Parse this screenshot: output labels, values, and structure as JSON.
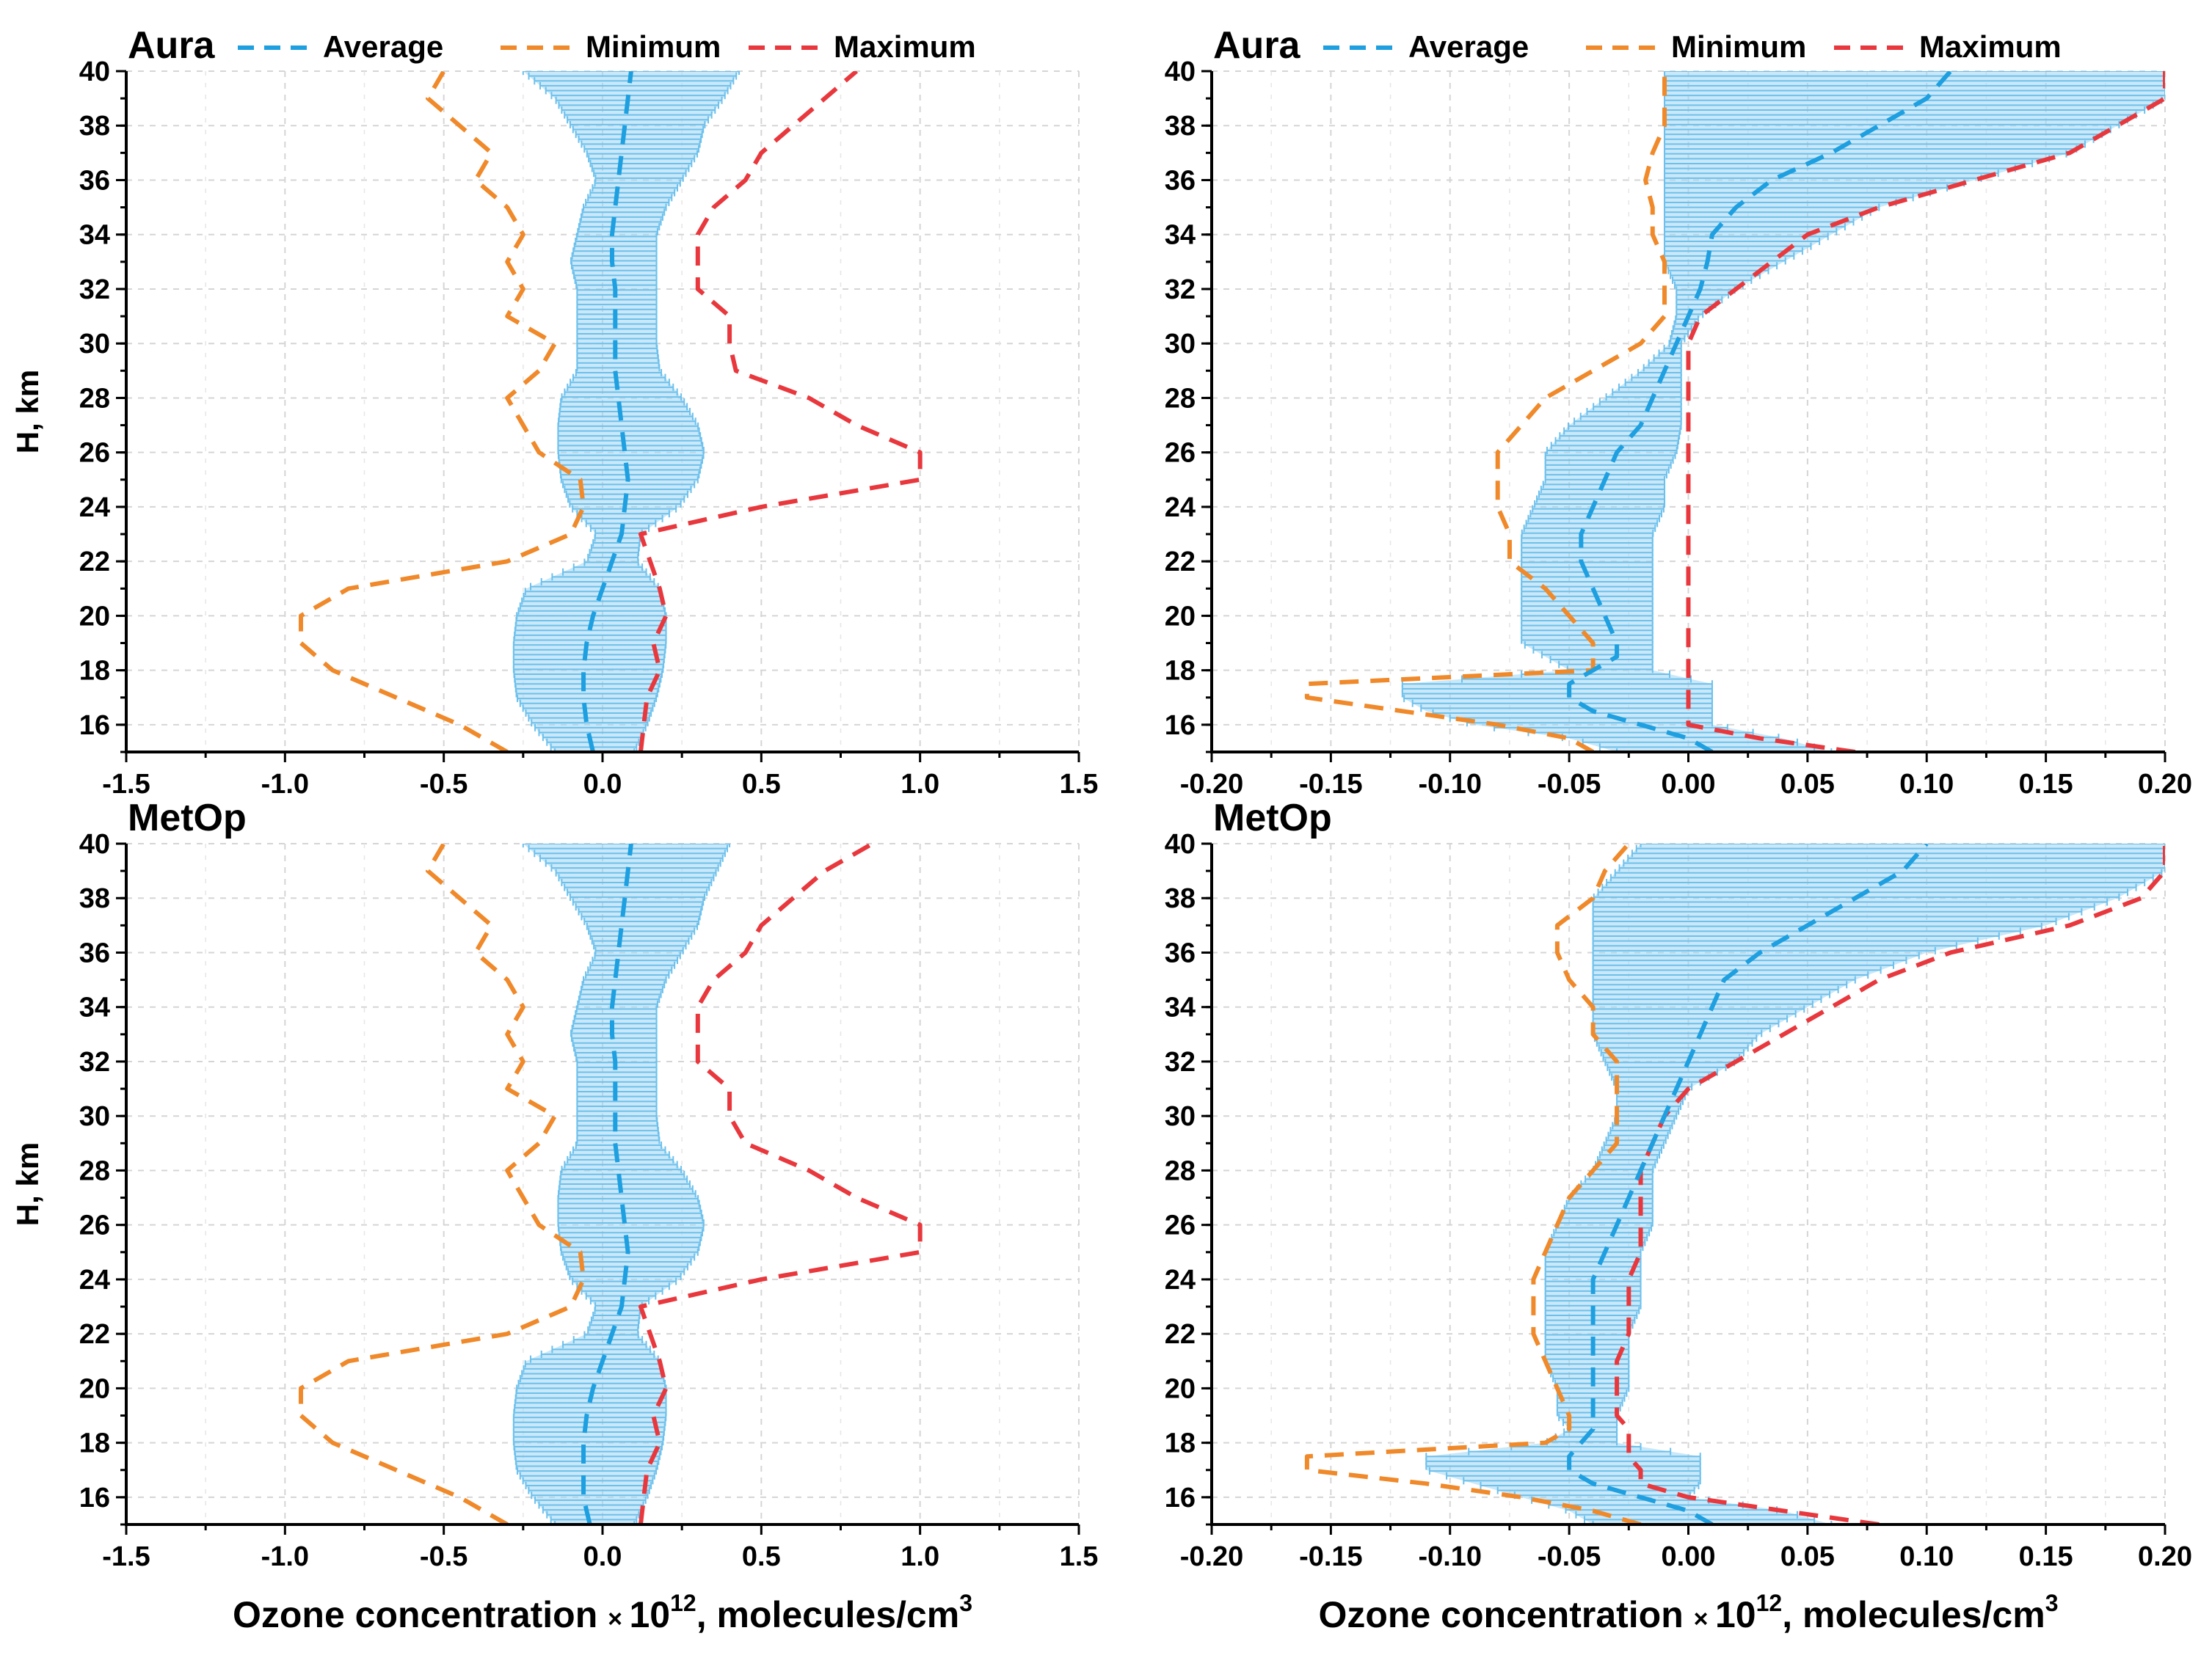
{
  "colors": {
    "average": "#1E9FE0",
    "minimum": "#F0892A",
    "maximum": "#E8383D",
    "band": "#9FD6F2",
    "grid": "#D5D5D5"
  },
  "legend": {
    "average": "Average",
    "minimum": "Minimum",
    "maximum": "Maximum"
  },
  "xlabel": {
    "main": "Ozone concentration",
    "times": "×",
    "base": "10",
    "exp": "12",
    "units": ", molecules/cm",
    "units_exp": "3"
  },
  "chart_data": [
    {
      "type": "line",
      "title": "Aura",
      "ylabel": "H, km",
      "xlim": [
        -1.5,
        1.5
      ],
      "ylim": [
        15,
        40
      ],
      "xticks": [
        "-1.5",
        "-1.0",
        "-0.5",
        "0.0",
        "0.5",
        "1.0",
        "1.5"
      ],
      "yticks": [
        "16",
        "18",
        "20",
        "22",
        "24",
        "26",
        "28",
        "30",
        "32",
        "34",
        "36",
        "38",
        "40"
      ],
      "h": [
        15,
        16,
        17,
        18,
        19,
        20,
        21,
        22,
        23,
        24,
        25,
        26,
        27,
        28,
        29,
        30,
        31,
        32,
        33,
        34,
        35,
        36,
        37,
        38,
        39,
        40
      ],
      "series": [
        {
          "name": "Average",
          "values": [
            -0.03,
            -0.05,
            -0.06,
            -0.06,
            -0.05,
            -0.03,
            0.0,
            0.03,
            0.06,
            0.07,
            0.08,
            0.07,
            0.06,
            0.05,
            0.04,
            0.04,
            0.04,
            0.04,
            0.03,
            0.03,
            0.04,
            0.05,
            0.06,
            0.07,
            0.08,
            0.09
          ]
        },
        {
          "name": "Band lower",
          "values": [
            -0.15,
            -0.22,
            -0.27,
            -0.28,
            -0.28,
            -0.27,
            -0.24,
            -0.05,
            -0.02,
            -0.1,
            -0.13,
            -0.14,
            -0.14,
            -0.13,
            -0.08,
            -0.08,
            -0.08,
            -0.08,
            -0.1,
            -0.08,
            -0.06,
            -0.02,
            -0.05,
            -0.1,
            -0.15,
            -0.25
          ]
        },
        {
          "name": "Band upper",
          "values": [
            0.1,
            0.14,
            0.17,
            0.19,
            0.2,
            0.2,
            0.18,
            0.11,
            0.12,
            0.24,
            0.3,
            0.32,
            0.3,
            0.25,
            0.18,
            0.17,
            0.17,
            0.17,
            0.17,
            0.17,
            0.2,
            0.25,
            0.3,
            0.32,
            0.38,
            0.43
          ]
        },
        {
          "name": "Minimum",
          "values": [
            -0.3,
            -0.45,
            -0.65,
            -0.85,
            -0.95,
            -0.95,
            -0.8,
            -0.3,
            -0.1,
            -0.06,
            -0.07,
            -0.2,
            -0.25,
            -0.3,
            -0.2,
            -0.15,
            -0.3,
            -0.25,
            -0.3,
            -0.25,
            -0.3,
            -0.4,
            -0.35,
            -0.45,
            -0.55,
            -0.5
          ]
        },
        {
          "name": "Maximum",
          "values": [
            0.12,
            0.13,
            0.14,
            0.18,
            0.16,
            0.2,
            0.18,
            0.15,
            0.12,
            0.5,
            1.0,
            1.0,
            0.8,
            0.65,
            0.42,
            0.4,
            0.4,
            0.3,
            0.3,
            0.3,
            0.35,
            0.45,
            0.5,
            0.6,
            0.7,
            0.8
          ]
        }
      ]
    },
    {
      "type": "line",
      "title": "Aura",
      "ylabel": "",
      "xlim": [
        -0.2,
        0.2
      ],
      "ylim": [
        15,
        40
      ],
      "xticks": [
        "-0.20",
        "-0.15",
        "-0.10",
        "-0.05",
        "0.00",
        "0.05",
        "0.10",
        "0.15",
        "0.20"
      ],
      "yticks": [
        "16",
        "18",
        "20",
        "22",
        "24",
        "26",
        "28",
        "30",
        "32",
        "34",
        "36",
        "38",
        "40"
      ],
      "h": [
        15,
        15.5,
        16,
        16.5,
        17,
        17.5,
        18,
        18.5,
        19,
        20,
        21,
        22,
        23,
        24,
        25,
        26,
        27,
        28,
        29,
        30,
        31,
        32,
        33,
        34,
        35,
        36,
        37,
        38,
        39,
        40
      ],
      "series": [
        {
          "name": "Average",
          "values": [
            0.01,
            0.0,
            -0.02,
            -0.04,
            -0.05,
            -0.05,
            -0.04,
            -0.03,
            -0.03,
            -0.035,
            -0.04,
            -0.045,
            -0.045,
            -0.04,
            -0.035,
            -0.03,
            -0.02,
            -0.015,
            -0.01,
            -0.005,
            0.0,
            0.005,
            0.008,
            0.01,
            0.02,
            0.035,
            0.06,
            0.08,
            0.1,
            0.11
          ]
        },
        {
          "name": "Band lower",
          "values": [
            -0.03,
            -0.05,
            -0.09,
            -0.11,
            -0.12,
            -0.12,
            -0.05,
            -0.06,
            -0.07,
            -0.07,
            -0.07,
            -0.07,
            -0.07,
            -0.065,
            -0.06,
            -0.06,
            -0.05,
            -0.035,
            -0.02,
            -0.008,
            -0.005,
            -0.005,
            -0.01,
            -0.01,
            -0.01,
            -0.01,
            -0.01,
            -0.01,
            -0.01,
            -0.01
          ]
        },
        {
          "name": "Band upper",
          "values": [
            0.06,
            0.04,
            0.01,
            0.01,
            0.01,
            0.01,
            -0.015,
            -0.015,
            -0.015,
            -0.015,
            -0.015,
            -0.015,
            -0.015,
            -0.01,
            -0.01,
            -0.005,
            -0.003,
            -0.003,
            -0.003,
            -0.003,
            0.005,
            0.02,
            0.04,
            0.06,
            0.08,
            0.12,
            0.16,
            0.18,
            0.2,
            0.2
          ]
        },
        {
          "name": "Minimum",
          "values": [
            -0.04,
            -0.05,
            -0.08,
            -0.12,
            -0.16,
            -0.16,
            -0.04,
            -0.04,
            -0.04,
            -0.05,
            -0.06,
            -0.075,
            -0.075,
            -0.08,
            -0.08,
            -0.08,
            -0.07,
            -0.06,
            -0.04,
            -0.02,
            -0.01,
            -0.01,
            -0.01,
            -0.015,
            -0.015,
            -0.018,
            -0.015,
            -0.01,
            -0.01,
            -0.01
          ]
        },
        {
          "name": "Maximum",
          "values": [
            0.07,
            0.03,
            0.0,
            0.0,
            0.0,
            0.0,
            0.0,
            0.0,
            0.0,
            0.0,
            0.0,
            0.0,
            0.0,
            0.0,
            0.0,
            0.0,
            0.0,
            0.0,
            0.0,
            0.0,
            0.005,
            0.02,
            0.035,
            0.05,
            0.08,
            0.12,
            0.16,
            0.18,
            0.2,
            0.2
          ]
        }
      ]
    },
    {
      "type": "line",
      "title": "MetOp",
      "ylabel": "H, km",
      "xlim": [
        -1.5,
        1.5
      ],
      "ylim": [
        15,
        40
      ],
      "xticks": [
        "-1.5",
        "-1.0",
        "-0.5",
        "0.0",
        "0.5",
        "1.0",
        "1.5"
      ],
      "yticks": [
        "16",
        "18",
        "20",
        "22",
        "24",
        "26",
        "28",
        "30",
        "32",
        "34",
        "36",
        "38",
        "40"
      ],
      "h": [
        15,
        16,
        17,
        18,
        19,
        20,
        21,
        22,
        23,
        24,
        25,
        26,
        27,
        28,
        29,
        30,
        31,
        32,
        33,
        34,
        35,
        36,
        37,
        38,
        39,
        40
      ],
      "series": [
        {
          "name": "Average",
          "values": [
            -0.04,
            -0.06,
            -0.06,
            -0.06,
            -0.05,
            -0.03,
            0.0,
            0.03,
            0.06,
            0.07,
            0.08,
            0.07,
            0.06,
            0.05,
            0.04,
            0.04,
            0.04,
            0.04,
            0.03,
            0.03,
            0.04,
            0.05,
            0.06,
            0.07,
            0.08,
            0.09
          ]
        },
        {
          "name": "Band lower",
          "values": [
            -0.15,
            -0.22,
            -0.27,
            -0.28,
            -0.28,
            -0.27,
            -0.24,
            -0.05,
            -0.02,
            -0.1,
            -0.13,
            -0.14,
            -0.14,
            -0.13,
            -0.08,
            -0.08,
            -0.08,
            -0.08,
            -0.1,
            -0.08,
            -0.06,
            -0.02,
            -0.05,
            -0.1,
            -0.15,
            -0.25
          ]
        },
        {
          "name": "Band upper",
          "values": [
            0.1,
            0.14,
            0.17,
            0.19,
            0.2,
            0.2,
            0.18,
            0.11,
            0.12,
            0.24,
            0.3,
            0.32,
            0.3,
            0.25,
            0.18,
            0.17,
            0.17,
            0.17,
            0.17,
            0.17,
            0.2,
            0.25,
            0.3,
            0.32,
            0.36,
            0.4
          ]
        },
        {
          "name": "Minimum",
          "values": [
            -0.3,
            -0.45,
            -0.65,
            -0.85,
            -0.95,
            -0.95,
            -0.8,
            -0.3,
            -0.1,
            -0.06,
            -0.07,
            -0.2,
            -0.25,
            -0.3,
            -0.2,
            -0.15,
            -0.3,
            -0.25,
            -0.3,
            -0.25,
            -0.3,
            -0.4,
            -0.35,
            -0.45,
            -0.55,
            -0.5
          ]
        },
        {
          "name": "Maximum",
          "values": [
            0.12,
            0.13,
            0.14,
            0.18,
            0.16,
            0.2,
            0.18,
            0.15,
            0.12,
            0.5,
            1.0,
            1.0,
            0.8,
            0.65,
            0.45,
            0.4,
            0.4,
            0.3,
            0.3,
            0.3,
            0.35,
            0.45,
            0.5,
            0.6,
            0.7,
            0.85
          ]
        }
      ]
    },
    {
      "type": "line",
      "title": "MetOp",
      "ylabel": "",
      "xlim": [
        -0.2,
        0.2
      ],
      "ylim": [
        15,
        40
      ],
      "xticks": [
        "-0.20",
        "-0.15",
        "-0.10",
        "-0.05",
        "0.00",
        "0.05",
        "0.10",
        "0.15",
        "0.20"
      ],
      "yticks": [
        "16",
        "18",
        "20",
        "22",
        "24",
        "26",
        "28",
        "30",
        "32",
        "34",
        "36",
        "38",
        "40"
      ],
      "h": [
        15,
        15.5,
        16,
        16.5,
        17,
        17.5,
        18,
        18.5,
        19,
        20,
        21,
        22,
        23,
        24,
        25,
        26,
        27,
        28,
        29,
        30,
        31,
        32,
        33,
        34,
        35,
        36,
        37,
        38,
        39,
        40
      ],
      "series": [
        {
          "name": "Average",
          "values": [
            0.01,
            0.0,
            -0.02,
            -0.04,
            -0.05,
            -0.05,
            -0.045,
            -0.04,
            -0.04,
            -0.04,
            -0.04,
            -0.04,
            -0.04,
            -0.04,
            -0.035,
            -0.03,
            -0.025,
            -0.02,
            -0.015,
            -0.01,
            -0.005,
            0.0,
            0.005,
            0.01,
            0.015,
            0.03,
            0.05,
            0.07,
            0.09,
            0.1
          ]
        },
        {
          "name": "Band lower",
          "values": [
            -0.04,
            -0.05,
            -0.07,
            -0.09,
            -0.11,
            -0.11,
            -0.06,
            -0.05,
            -0.055,
            -0.055,
            -0.06,
            -0.06,
            -0.06,
            -0.06,
            -0.06,
            -0.055,
            -0.05,
            -0.04,
            -0.035,
            -0.03,
            -0.03,
            -0.035,
            -0.04,
            -0.04,
            -0.04,
            -0.04,
            -0.04,
            -0.04,
            -0.03,
            -0.02
          ]
        },
        {
          "name": "Band upper",
          "values": [
            0.06,
            0.04,
            0.0,
            0.005,
            0.005,
            0.005,
            -0.03,
            -0.03,
            -0.03,
            -0.025,
            -0.025,
            -0.025,
            -0.02,
            -0.02,
            -0.02,
            -0.015,
            -0.015,
            -0.015,
            -0.01,
            -0.005,
            0.0,
            0.02,
            0.03,
            0.05,
            0.07,
            0.1,
            0.15,
            0.18,
            0.2,
            0.2
          ]
        },
        {
          "name": "Minimum",
          "values": [
            -0.02,
            -0.04,
            -0.07,
            -0.11,
            -0.16,
            -0.16,
            -0.06,
            -0.05,
            -0.05,
            -0.055,
            -0.06,
            -0.065,
            -0.065,
            -0.065,
            -0.06,
            -0.055,
            -0.05,
            -0.04,
            -0.03,
            -0.03,
            -0.03,
            -0.03,
            -0.04,
            -0.04,
            -0.05,
            -0.055,
            -0.055,
            -0.04,
            -0.035,
            -0.025
          ]
        },
        {
          "name": "Maximum",
          "values": [
            0.08,
            0.04,
            0.0,
            -0.02,
            -0.02,
            -0.025,
            -0.025,
            -0.025,
            -0.03,
            -0.03,
            -0.03,
            -0.025,
            -0.025,
            -0.025,
            -0.02,
            -0.02,
            -0.02,
            -0.02,
            -0.015,
            -0.01,
            0.0,
            0.02,
            0.04,
            0.06,
            0.08,
            0.11,
            0.16,
            0.19,
            0.2,
            0.2
          ]
        }
      ]
    }
  ]
}
